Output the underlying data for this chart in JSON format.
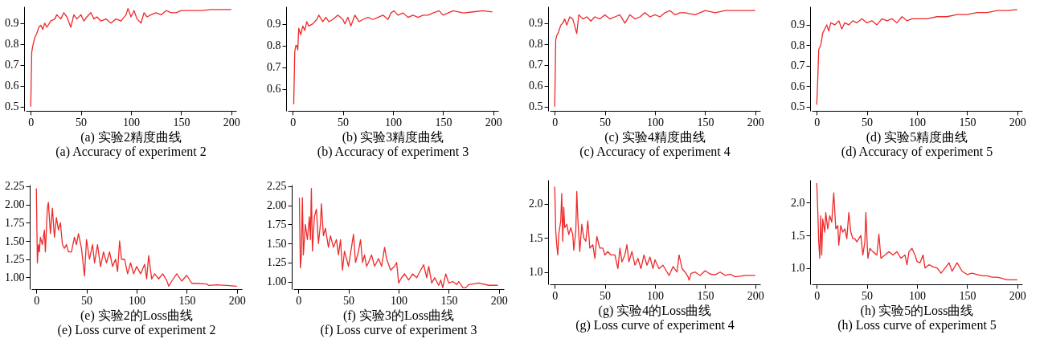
{
  "chart_data": [
    {
      "type": "line",
      "title": "(a) 实验2精度曲线",
      "subtitle": "(a) Accuracy of experiment 2",
      "xlim": [
        -5,
        205
      ],
      "xticks": [
        0,
        50,
        100,
        150,
        200
      ],
      "ylim": [
        0.48,
        0.98
      ],
      "yticks": [
        0.5,
        0.6,
        0.7,
        0.8,
        0.9
      ],
      "x": [
        0,
        1,
        2,
        4,
        6,
        8,
        10,
        12,
        14,
        16,
        20,
        24,
        26,
        30,
        33,
        36,
        40,
        43,
        46,
        50,
        53,
        56,
        60,
        63,
        66,
        70,
        75,
        80,
        85,
        90,
        95,
        97,
        100,
        103,
        106,
        110,
        113,
        116,
        120,
        125,
        130,
        135,
        140,
        145,
        150,
        160,
        170,
        180,
        190,
        200
      ],
      "series": [
        {
          "color": "#ee2a2a",
          "values": [
            0.5,
            0.76,
            0.79,
            0.83,
            0.85,
            0.88,
            0.89,
            0.87,
            0.9,
            0.88,
            0.91,
            0.92,
            0.94,
            0.92,
            0.95,
            0.93,
            0.88,
            0.94,
            0.92,
            0.94,
            0.91,
            0.93,
            0.95,
            0.92,
            0.93,
            0.91,
            0.92,
            0.9,
            0.92,
            0.91,
            0.94,
            0.97,
            0.93,
            0.96,
            0.92,
            0.9,
            0.95,
            0.93,
            0.94,
            0.95,
            0.94,
            0.96,
            0.95,
            0.95,
            0.96,
            0.96,
            0.96,
            0.965,
            0.965,
            0.965
          ]
        }
      ]
    },
    {
      "type": "line",
      "title": "(b) 实验3精度曲线",
      "subtitle": "(b) Accuracy of experiment 3",
      "xlim": [
        -5,
        205
      ],
      "xticks": [
        0,
        50,
        100,
        150,
        200
      ],
      "ylim": [
        0.5,
        0.98
      ],
      "yticks": [
        0.6,
        0.7,
        0.8,
        0.9
      ],
      "x": [
        1,
        2,
        3,
        4,
        5,
        6,
        8,
        10,
        12,
        14,
        16,
        20,
        24,
        26,
        30,
        33,
        36,
        40,
        45,
        50,
        52,
        55,
        58,
        62,
        66,
        70,
        75,
        80,
        85,
        90,
        95,
        98,
        101,
        105,
        110,
        115,
        120,
        125,
        130,
        135,
        140,
        146,
        150,
        155,
        160,
        170,
        180,
        190,
        199
      ],
      "series": [
        {
          "color": "#ee2a2a",
          "values": [
            0.53,
            0.77,
            0.8,
            0.8,
            0.78,
            0.88,
            0.85,
            0.89,
            0.87,
            0.91,
            0.89,
            0.9,
            0.92,
            0.94,
            0.91,
            0.93,
            0.91,
            0.92,
            0.94,
            0.92,
            0.9,
            0.93,
            0.89,
            0.94,
            0.91,
            0.92,
            0.93,
            0.92,
            0.93,
            0.94,
            0.92,
            0.95,
            0.96,
            0.94,
            0.95,
            0.93,
            0.94,
            0.93,
            0.94,
            0.94,
            0.95,
            0.96,
            0.94,
            0.95,
            0.96,
            0.95,
            0.955,
            0.96,
            0.955
          ]
        }
      ]
    },
    {
      "type": "line",
      "title": "(c) 实验4精度曲线",
      "subtitle": "(c) Accuracy of experiment 4",
      "xlim": [
        -5,
        205
      ],
      "xticks": [
        0,
        50,
        100,
        150,
        200
      ],
      "ylim": [
        0.48,
        0.98
      ],
      "yticks": [
        0.5,
        0.6,
        0.7,
        0.8,
        0.9
      ],
      "x": [
        0,
        1,
        2,
        4,
        6,
        8,
        10,
        12,
        15,
        18,
        22,
        24,
        28,
        32,
        36,
        40,
        45,
        50,
        55,
        60,
        65,
        70,
        75,
        80,
        85,
        90,
        95,
        100,
        105,
        110,
        115,
        120,
        125,
        130,
        140,
        150,
        160,
        170,
        180,
        190,
        200
      ],
      "series": [
        {
          "color": "#ee2a2a",
          "values": [
            0.5,
            0.82,
            0.84,
            0.86,
            0.89,
            0.9,
            0.92,
            0.89,
            0.93,
            0.92,
            0.85,
            0.94,
            0.92,
            0.93,
            0.91,
            0.93,
            0.92,
            0.94,
            0.92,
            0.93,
            0.94,
            0.9,
            0.94,
            0.92,
            0.93,
            0.95,
            0.93,
            0.94,
            0.93,
            0.95,
            0.96,
            0.94,
            0.95,
            0.95,
            0.94,
            0.96,
            0.95,
            0.96,
            0.96,
            0.96,
            0.96
          ]
        }
      ]
    },
    {
      "type": "line",
      "title": "(d) 实验5精度曲线",
      "subtitle": "(d) Accuracy of experiment 5",
      "xlim": [
        -5,
        205
      ],
      "xticks": [
        0,
        50,
        100,
        150,
        200
      ],
      "ylim": [
        0.48,
        0.99
      ],
      "yticks": [
        0.5,
        0.6,
        0.7,
        0.8,
        0.9
      ],
      "x": [
        0,
        1,
        2,
        4,
        6,
        8,
        10,
        12,
        14,
        18,
        22,
        25,
        28,
        32,
        36,
        40,
        45,
        50,
        55,
        60,
        65,
        70,
        75,
        80,
        85,
        90,
        95,
        100,
        110,
        120,
        130,
        140,
        150,
        160,
        170,
        180,
        190,
        200
      ],
      "series": [
        {
          "color": "#ee2a2a",
          "values": [
            0.51,
            0.63,
            0.78,
            0.8,
            0.86,
            0.88,
            0.9,
            0.87,
            0.91,
            0.9,
            0.92,
            0.88,
            0.91,
            0.9,
            0.92,
            0.91,
            0.93,
            0.91,
            0.92,
            0.9,
            0.93,
            0.92,
            0.93,
            0.91,
            0.94,
            0.92,
            0.93,
            0.93,
            0.93,
            0.94,
            0.94,
            0.95,
            0.95,
            0.96,
            0.96,
            0.97,
            0.97,
            0.975
          ]
        }
      ]
    },
    {
      "type": "line",
      "title": "(e) 实验2的Loss曲线",
      "subtitle": "(e) Loss curve of experiment 2",
      "xlim": [
        -5,
        205
      ],
      "xticks": [
        0,
        50,
        100,
        150,
        200
      ],
      "ylim": [
        0.84,
        2.27
      ],
      "yticks": [
        {
          "value": 1,
          "label": "1.00"
        },
        1.25,
        {
          "value": 1.5,
          "label": "1.50"
        },
        1.75,
        {
          "value": 2,
          "label": "2.00"
        },
        2.25
      ],
      "x": [
        0,
        1,
        2,
        3,
        4,
        6,
        8,
        9,
        11,
        12,
        14,
        16,
        18,
        20,
        22,
        24,
        26,
        28,
        30,
        32,
        35,
        38,
        40,
        42,
        45,
        48,
        50,
        53,
        56,
        58,
        61,
        64,
        67,
        70,
        73,
        76,
        79,
        81,
        83,
        85,
        88,
        91,
        94,
        97,
        100,
        104,
        108,
        110,
        112,
        115,
        118,
        122,
        126,
        130,
        132,
        135,
        140,
        145,
        150,
        155,
        160,
        170,
        172,
        180,
        190,
        200
      ],
      "series": [
        {
          "color": "#ee2a2a",
          "values": [
            2.22,
            1.2,
            1.45,
            1.35,
            1.55,
            1.45,
            1.65,
            1.35,
            1.95,
            2.03,
            1.6,
            1.95,
            1.55,
            1.82,
            1.65,
            1.75,
            1.45,
            1.4,
            1.45,
            1.35,
            1.35,
            1.55,
            1.45,
            1.6,
            1.4,
            1.02,
            1.52,
            1.25,
            1.45,
            1.2,
            1.45,
            1.15,
            1.35,
            1.2,
            1.35,
            1.15,
            1.25,
            1.08,
            1.5,
            1.25,
            1.25,
            1.05,
            1.2,
            1.05,
            1.15,
            1.05,
            1.18,
            0.98,
            1.3,
            0.98,
            1.05,
            0.98,
            1.05,
            0.96,
            0.88,
            0.95,
            1.05,
            0.95,
            1.03,
            0.92,
            0.92,
            0.91,
            0.89,
            0.9,
            0.89,
            0.88
          ]
        }
      ]
    },
    {
      "type": "line",
      "title": "(f) 实验3的Loss曲线",
      "subtitle": "(f) Loss curve of experiment 3",
      "xlim": [
        -5,
        205
      ],
      "xticks": [
        0,
        50,
        100,
        150,
        200
      ],
      "ylim": [
        0.9,
        2.27
      ],
      "yticks": [
        {
          "value": 1,
          "label": "1.00"
        },
        1.25,
        {
          "value": 1.5,
          "label": "1.50"
        },
        1.75,
        {
          "value": 2,
          "label": "2.00"
        },
        2.25
      ],
      "x": [
        1,
        2,
        3,
        4,
        5,
        7,
        9,
        11,
        12,
        13,
        14,
        16,
        18,
        20,
        22,
        23,
        25,
        27,
        30,
        32,
        35,
        38,
        40,
        42,
        44,
        46,
        50,
        53,
        55,
        57,
        60,
        62,
        64,
        66,
        68,
        70,
        73,
        76,
        80,
        83,
        86,
        88,
        92,
        96,
        98,
        100,
        103,
        106,
        110,
        114,
        118,
        122,
        125,
        128,
        130,
        133,
        136,
        140,
        142,
        144,
        147,
        150,
        154,
        158,
        160,
        164,
        167,
        170,
        175,
        180,
        190,
        199
      ],
      "series": [
        {
          "color": "#ee2a2a",
          "values": [
            2.1,
            1.18,
            1.35,
            2.1,
            1.35,
            1.75,
            1.55,
            1.85,
            1.55,
            2.22,
            1.4,
            1.85,
            1.95,
            1.5,
            1.75,
            2.02,
            1.6,
            1.7,
            1.45,
            1.6,
            1.45,
            1.55,
            1.35,
            1.55,
            1.15,
            1.4,
            1.2,
            1.45,
            1.62,
            1.25,
            1.4,
            1.55,
            1.25,
            1.35,
            1.2,
            1.25,
            1.35,
            1.2,
            1.3,
            1.2,
            1.45,
            1.3,
            1.15,
            1.2,
            1.25,
            0.98,
            1.05,
            1.1,
            1.02,
            1.1,
            1.05,
            1.15,
            1.22,
            1.05,
            1.2,
            0.98,
            1.05,
            0.95,
            1.02,
            0.92,
            1.1,
            0.98,
            1.0,
            0.96,
            1.0,
            0.92,
            0.92,
            0.96,
            0.97,
            0.98,
            0.95,
            0.95
          ]
        }
      ]
    },
    {
      "type": "line",
      "title": "(g) 实验4的Loss曲线",
      "subtitle": "(g) Loss curve of experiment 4",
      "xlim": [
        -5,
        205
      ],
      "xticks": [
        0,
        50,
        100,
        150,
        200
      ],
      "ylim": [
        0.82,
        2.35
      ],
      "yticks": [
        {
          "value": 1,
          "label": "1.0"
        },
        1.5,
        {
          "value": 2,
          "label": "2.0"
        }
      ],
      "x": [
        0,
        1,
        2,
        3,
        4,
        6,
        7,
        8,
        9,
        10,
        12,
        14,
        16,
        18,
        19,
        21,
        22,
        23,
        25,
        27,
        29,
        31,
        33,
        35,
        38,
        40,
        42,
        45,
        48,
        50,
        53,
        56,
        60,
        63,
        65,
        67,
        70,
        72,
        74,
        77,
        80,
        83,
        86,
        89,
        92,
        95,
        98,
        100,
        104,
        108,
        112,
        114,
        118,
        122,
        124,
        127,
        130,
        133,
        134,
        136,
        140,
        145,
        150,
        155,
        160,
        165,
        170,
        175,
        180,
        185,
        190,
        200
      ],
      "series": [
        {
          "color": "#ee2a2a",
          "values": [
            2.25,
            1.6,
            1.4,
            1.25,
            1.55,
            1.75,
            2.15,
            1.45,
            1.95,
            1.65,
            1.7,
            1.55,
            1.65,
            1.55,
            1.32,
            1.6,
            2.18,
            1.8,
            1.3,
            1.7,
            1.5,
            1.45,
            1.75,
            1.35,
            1.4,
            1.2,
            1.52,
            1.35,
            1.35,
            1.25,
            1.3,
            1.25,
            1.25,
            1.05,
            1.35,
            1.15,
            1.25,
            1.4,
            1.15,
            1.3,
            1.1,
            1.2,
            1.05,
            1.25,
            1.1,
            1.22,
            1.05,
            1.18,
            1.05,
            1.1,
            1.0,
            0.95,
            1.08,
            1.0,
            1.25,
            1.05,
            1.0,
            0.93,
            0.88,
            0.98,
            1.0,
            0.95,
            1.02,
            0.97,
            0.96,
            1.0,
            0.95,
            0.97,
            0.93,
            0.94,
            0.95,
            0.95
          ]
        }
      ]
    },
    {
      "type": "line",
      "title": "(h) 实验5的Loss曲线",
      "subtitle": "(h) Loss curve of experiment 5",
      "xlim": [
        -5,
        205
      ],
      "xticks": [
        0,
        50,
        100,
        150,
        200
      ],
      "ylim": [
        0.75,
        2.35
      ],
      "yticks": [
        {
          "value": 1,
          "label": "1.0"
        },
        1.5,
        {
          "value": 2,
          "label": "2.0"
        }
      ],
      "x": [
        0,
        1,
        2,
        3,
        4,
        5,
        6,
        8,
        9,
        11,
        13,
        15,
        16,
        17,
        19,
        21,
        22,
        24,
        26,
        28,
        30,
        32,
        34,
        36,
        38,
        40,
        44,
        46,
        48,
        49,
        51,
        53,
        56,
        60,
        62,
        64,
        68,
        72,
        76,
        80,
        84,
        88,
        90,
        92,
        95,
        98,
        100,
        103,
        106,
        108,
        112,
        116,
        120,
        124,
        128,
        132,
        135,
        140,
        145,
        150,
        155,
        160,
        165,
        170,
        175,
        180,
        185,
        190,
        200
      ],
      "series": [
        {
          "color": "#ee2a2a",
          "values": [
            2.3,
            1.9,
            1.4,
            1.15,
            1.8,
            1.2,
            1.75,
            1.55,
            1.85,
            1.6,
            1.8,
            1.7,
            1.95,
            2.15,
            1.6,
            1.65,
            1.35,
            1.65,
            1.55,
            1.6,
            1.45,
            1.85,
            1.55,
            1.45,
            1.45,
            1.4,
            1.5,
            1.2,
            1.4,
            1.85,
            1.15,
            1.3,
            1.25,
            1.2,
            1.52,
            1.15,
            1.2,
            1.25,
            1.2,
            1.25,
            1.15,
            1.2,
            1.05,
            1.25,
            1.3,
            1.2,
            1.1,
            1.08,
            1.2,
            1.0,
            1.05,
            1.02,
            1.0,
            0.92,
            1.0,
            1.08,
            0.95,
            1.08,
            0.95,
            0.9,
            0.92,
            0.9,
            0.88,
            0.88,
            0.86,
            0.86,
            0.84,
            0.82,
            0.82
          ]
        }
      ]
    }
  ]
}
